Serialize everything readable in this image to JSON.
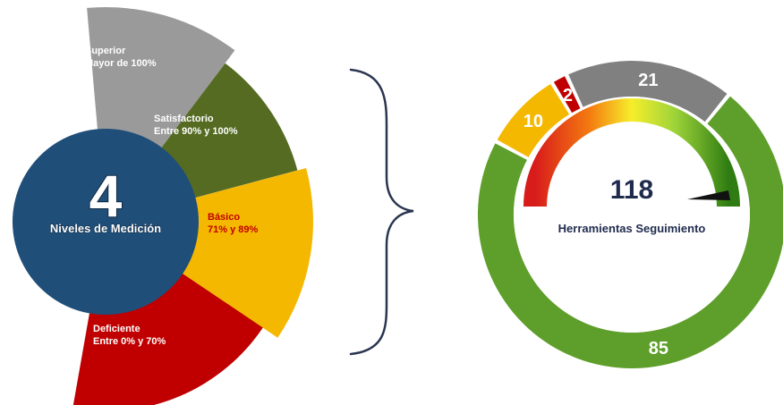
{
  "chart_data": [
    {
      "type": "pie",
      "variant": "polar-area",
      "center_label": {
        "number": "4",
        "text": "Niveles de Medición"
      },
      "slices": [
        {
          "name": "Superior",
          "range_text": "Mayor de 100%",
          "color": "#9a9a9a",
          "text_color": "#ffffff"
        },
        {
          "name": "Satisfactorio",
          "range_text": "Entre 90% y 100%",
          "color": "#556b22",
          "text_color": "#ffffff"
        },
        {
          "name": "Básico",
          "range_text": "71% y 89%",
          "color": "#f5b800",
          "text_color": "#c00000"
        },
        {
          "name": "Deficiente",
          "range_text": "Entre 0% y 70%",
          "color": "#c00000",
          "text_color": "#ffffff"
        }
      ]
    },
    {
      "type": "pie",
      "variant": "donut-with-gauge",
      "total": 118,
      "center_text": "Herramientas Seguimiento",
      "slices": [
        {
          "label": "85",
          "value": 85,
          "color": "#5e9e2a"
        },
        {
          "label": "10",
          "value": 10,
          "color": "#f5b800"
        },
        {
          "label": "2",
          "value": 2,
          "color": "#c00000"
        },
        {
          "label": "21",
          "value": 21,
          "color": "#808080"
        }
      ]
    }
  ],
  "colors": {
    "center_circle": "#1f4e79",
    "bracket": "#2a3550",
    "gauge_text": "#1f2b4d",
    "needle": "#111111"
  }
}
